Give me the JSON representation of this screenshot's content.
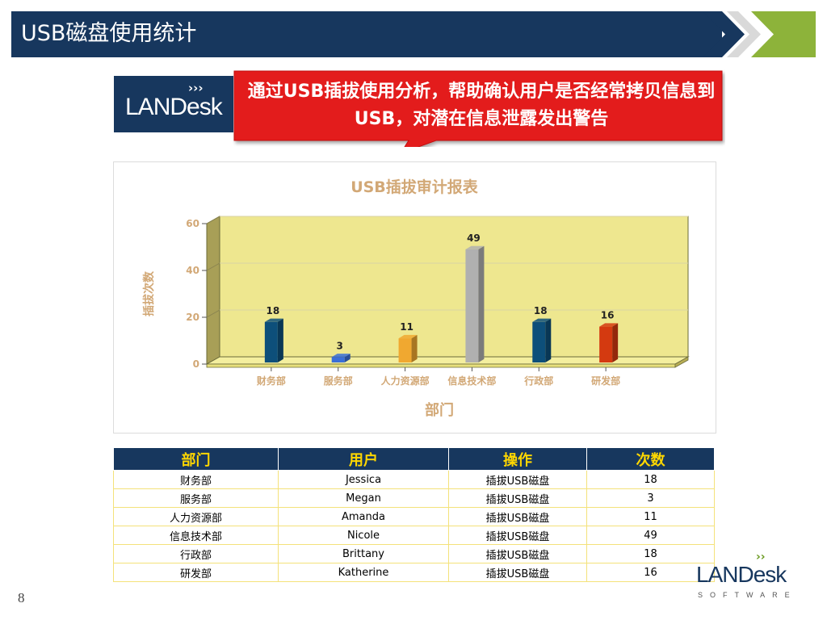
{
  "header": {
    "title": "USB磁盘使用统计"
  },
  "logo": {
    "brand": "LANDesk",
    "arrows": "›››"
  },
  "callout": {
    "text": "通过USB插拔使用分析，帮助确认用户是否经常拷贝信息到USB，对潜在信息泄露发出警告"
  },
  "chart_data": {
    "type": "bar",
    "title": "USB插拔审计报表",
    "xlabel": "部门",
    "ylabel": "插拔次数",
    "categories": [
      "财务部",
      "服务部",
      "人力资源部",
      "信息技术部",
      "行政部",
      "研发部"
    ],
    "values": [
      18,
      3,
      11,
      49,
      18,
      16
    ],
    "colors": [
      "#0d4f7a",
      "#3a6fd8",
      "#f0a830",
      "#b0b0b0",
      "#0d4f7a",
      "#d43a10"
    ],
    "ylim": [
      0,
      60
    ],
    "yticks": [
      "0",
      "20",
      "40",
      "60"
    ],
    "grid": true,
    "plot_color": "#eee78f"
  },
  "table": {
    "headers": [
      "部门",
      "用户",
      "操作",
      "次数"
    ],
    "rows": [
      [
        "财务部",
        "Jessica",
        "插拔USB磁盘",
        "18"
      ],
      [
        "服务部",
        "Megan",
        "插拔USB磁盘",
        "3"
      ],
      [
        "人力资源部",
        "Amanda",
        "插拔USB磁盘",
        "11"
      ],
      [
        "信息技术部",
        "Nicole",
        "插拔USB磁盘",
        "49"
      ],
      [
        "行政部",
        "Brittany",
        "插拔USB磁盘",
        "18"
      ],
      [
        "研发部",
        "Katherine",
        "插拔USB磁盘",
        "16"
      ]
    ]
  },
  "bottom_logo": {
    "brand": "LANDesk",
    "sub": "SOFTWARE",
    "arrows": "››"
  },
  "page": {
    "number": "8"
  }
}
